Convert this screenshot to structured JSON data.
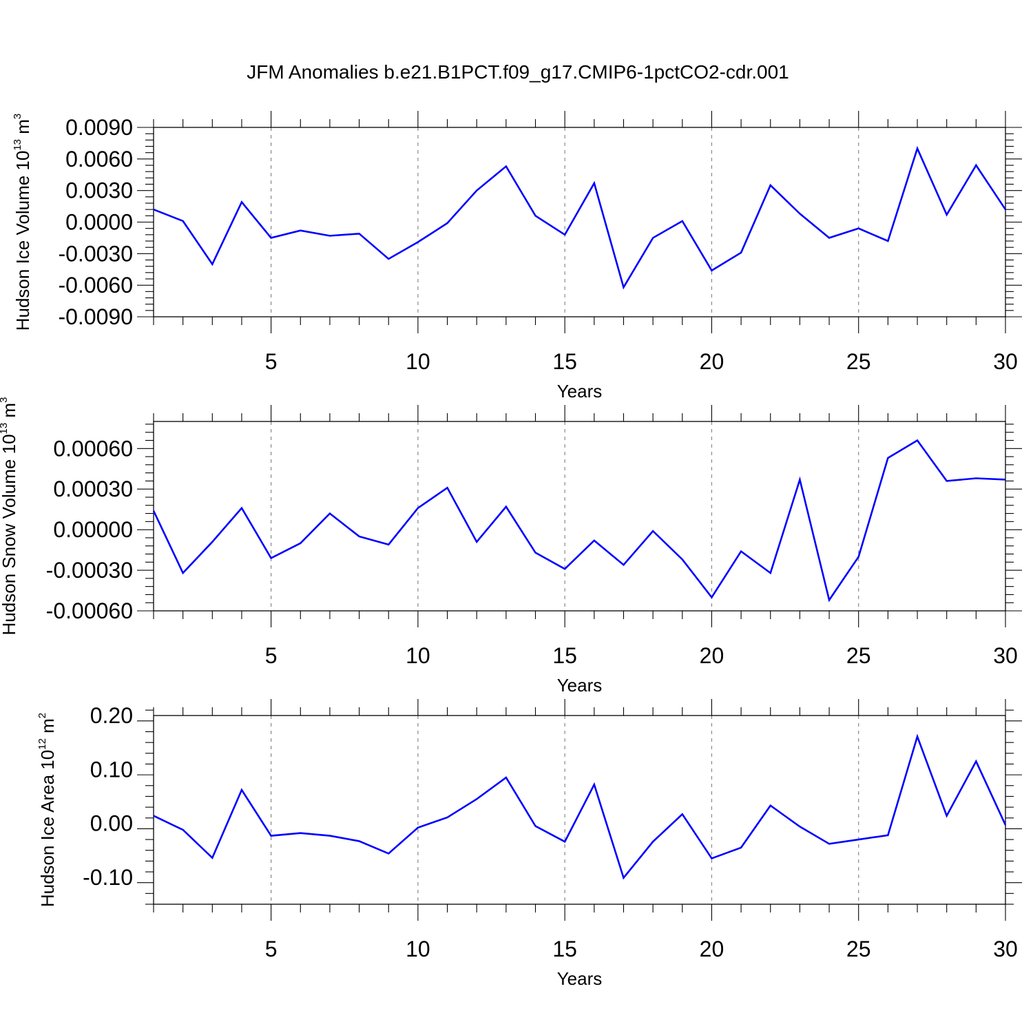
{
  "title": "JFM Anomalies b.e21.B1PCT.f09_g17.CMIP6-1pctCO2-cdr.001",
  "colors": {
    "line": "#0000ff",
    "grid": "#888888",
    "axis": "#000000"
  },
  "chart_data": [
    {
      "type": "line",
      "xlabel": "Years",
      "ylabel": "Hudson Ice Volume 10",
      "ylabel_exp": "13",
      "ylabel_unit": " m",
      "ylabel_unit_exp": "3",
      "xlim": [
        1,
        30
      ],
      "ylim": [
        -0.009,
        0.009
      ],
      "xticks": [
        5,
        10,
        15,
        20,
        25,
        30
      ],
      "xtick_labels": [
        "5",
        "10",
        "15",
        "20",
        "25",
        "30"
      ],
      "yticks": [
        -0.009,
        -0.006,
        -0.003,
        0.0,
        0.003,
        0.006,
        0.009
      ],
      "ytick_labels": [
        "-0.0090",
        "-0.0060",
        "-0.0030",
        "0.0000",
        "0.0030",
        "0.0060",
        "0.0090"
      ],
      "grid": "vertical dashed at major x ticks",
      "x": [
        1,
        2,
        3,
        4,
        5,
        6,
        7,
        8,
        9,
        10,
        11,
        12,
        13,
        14,
        15,
        16,
        17,
        18,
        19,
        20,
        21,
        22,
        23,
        24,
        25,
        26,
        27,
        28,
        29,
        30
      ],
      "series": [
        {
          "values": [
            0.0012,
            0.0001,
            -0.004,
            0.0019,
            -0.0015,
            -0.0008,
            -0.0013,
            -0.0011,
            -0.0035,
            -0.0019,
            -0.0001,
            0.003,
            0.0053,
            0.0006,
            -0.0012,
            0.0037,
            -0.0062,
            -0.0015,
            0.0001,
            -0.0046,
            -0.0029,
            0.0035,
            0.0008,
            -0.0015,
            -0.0006,
            -0.0018,
            0.007,
            0.0007,
            0.0054,
            0.0012
          ]
        }
      ]
    },
    {
      "type": "line",
      "xlabel": "Years",
      "ylabel": "Hudson Snow Volume 10",
      "ylabel_exp": "13",
      "ylabel_unit": " m",
      "ylabel_unit_exp": "3",
      "xlim": [
        1,
        30
      ],
      "ylim": [
        -0.0006,
        0.0008
      ],
      "xticks": [
        5,
        10,
        15,
        20,
        25,
        30
      ],
      "xtick_labels": [
        "5",
        "10",
        "15",
        "20",
        "25",
        "30"
      ],
      "yticks": [
        -0.0006,
        -0.0003,
        0.0,
        0.0003,
        0.0006
      ],
      "ytick_labels": [
        "-0.00060",
        "-0.00030",
        "0.00000",
        "0.00030",
        "0.00060"
      ],
      "grid": "vertical dashed at major x ticks",
      "x": [
        1,
        2,
        3,
        4,
        5,
        6,
        7,
        8,
        9,
        10,
        11,
        12,
        13,
        14,
        15,
        16,
        17,
        18,
        19,
        20,
        21,
        22,
        23,
        24,
        25,
        26,
        27,
        28,
        29,
        30
      ],
      "series": [
        {
          "values": [
            0.00014,
            -0.00032,
            -9e-05,
            0.00016,
            -0.00021,
            -0.0001,
            0.00012,
            -5e-05,
            -0.00011,
            0.00016,
            0.00031,
            -9e-05,
            0.00017,
            -0.00017,
            -0.00029,
            -8e-05,
            -0.00026,
            -1e-05,
            -0.00022,
            -0.0005,
            -0.00016,
            -0.00032,
            0.00037,
            -0.00052,
            -0.0002,
            0.00053,
            0.00066,
            0.00036,
            0.00038,
            0.00037
          ]
        }
      ]
    },
    {
      "type": "line",
      "xlabel": "Years",
      "ylabel": "Hudson Ice Area 10",
      "ylabel_exp": "12",
      "ylabel_unit": " m",
      "ylabel_unit_exp": "2",
      "xlim": [
        1,
        30
      ],
      "ylim": [
        -0.15,
        0.2
      ],
      "xticks": [
        5,
        10,
        15,
        20,
        25,
        30
      ],
      "xtick_labels": [
        "5",
        "10",
        "15",
        "20",
        "25",
        "30"
      ],
      "yticks": [
        -0.1,
        0.0,
        0.1,
        0.2
      ],
      "ytick_labels": [
        "-0.10",
        "0.00",
        "0.10",
        "0.20"
      ],
      "grid": "vertical dashed at major x ticks",
      "x": [
        1,
        2,
        3,
        4,
        5,
        6,
        7,
        8,
        9,
        10,
        11,
        12,
        13,
        14,
        15,
        16,
        17,
        18,
        19,
        20,
        21,
        22,
        23,
        24,
        25,
        26,
        27,
        28,
        29,
        30
      ],
      "series": [
        {
          "values": [
            0.014,
            -0.012,
            -0.064,
            0.062,
            -0.023,
            -0.018,
            -0.023,
            -0.033,
            -0.056,
            -0.008,
            0.011,
            0.045,
            0.085,
            -0.005,
            -0.034,
            0.072,
            -0.101,
            -0.034,
            0.017,
            -0.065,
            -0.045,
            0.033,
            -0.006,
            -0.038,
            -0.03,
            -0.022,
            0.161,
            0.014,
            0.115,
            -0.003
          ]
        }
      ]
    }
  ]
}
